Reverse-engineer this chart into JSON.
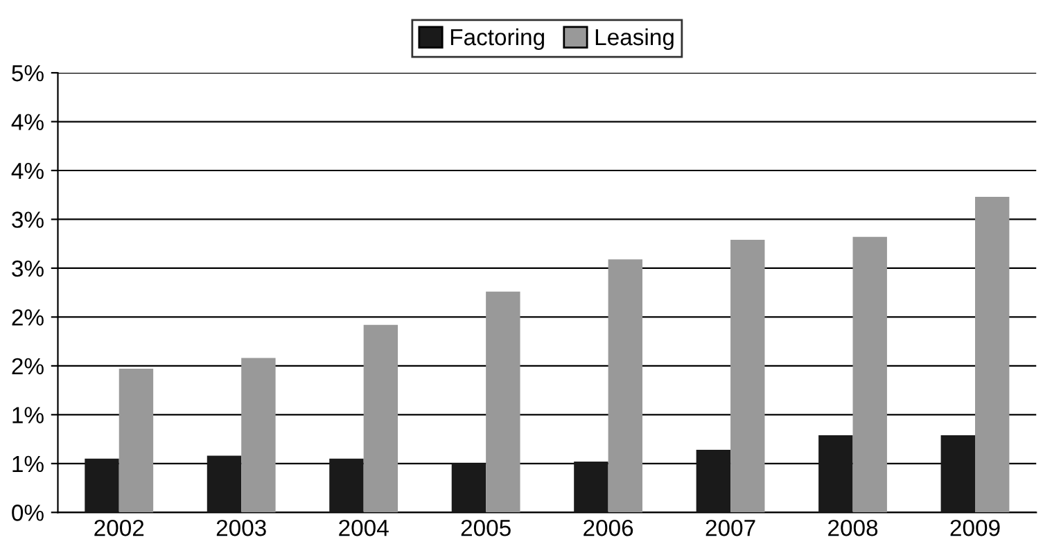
{
  "chart_data": {
    "type": "bar",
    "categories": [
      "2002",
      "2003",
      "2004",
      "2005",
      "2006",
      "2007",
      "2008",
      "2009"
    ],
    "series": [
      {
        "name": "Factoring",
        "color": "#1a1a1a",
        "values": [
          0.55,
          0.58,
          0.55,
          0.5,
          0.52,
          0.64,
          0.79,
          0.79
        ]
      },
      {
        "name": "Leasing",
        "color": "#999999",
        "values": [
          1.47,
          1.58,
          1.92,
          2.26,
          2.59,
          2.79,
          2.82,
          3.23
        ]
      }
    ],
    "ylim": [
      0,
      4.5
    ],
    "yticks": [
      {
        "value": 0,
        "label": "0%"
      },
      {
        "value": 0.5,
        "label": "1%"
      },
      {
        "value": 1.0,
        "label": "1%"
      },
      {
        "value": 1.5,
        "label": "2%"
      },
      {
        "value": 2.0,
        "label": "2%"
      },
      {
        "value": 2.5,
        "label": "3%"
      },
      {
        "value": 3.0,
        "label": "3%"
      },
      {
        "value": 3.5,
        "label": "4%"
      },
      {
        "value": 4.0,
        "label": "4%"
      },
      {
        "value": 4.5,
        "label": "5%"
      }
    ],
    "grid": "y",
    "legend": "top"
  }
}
